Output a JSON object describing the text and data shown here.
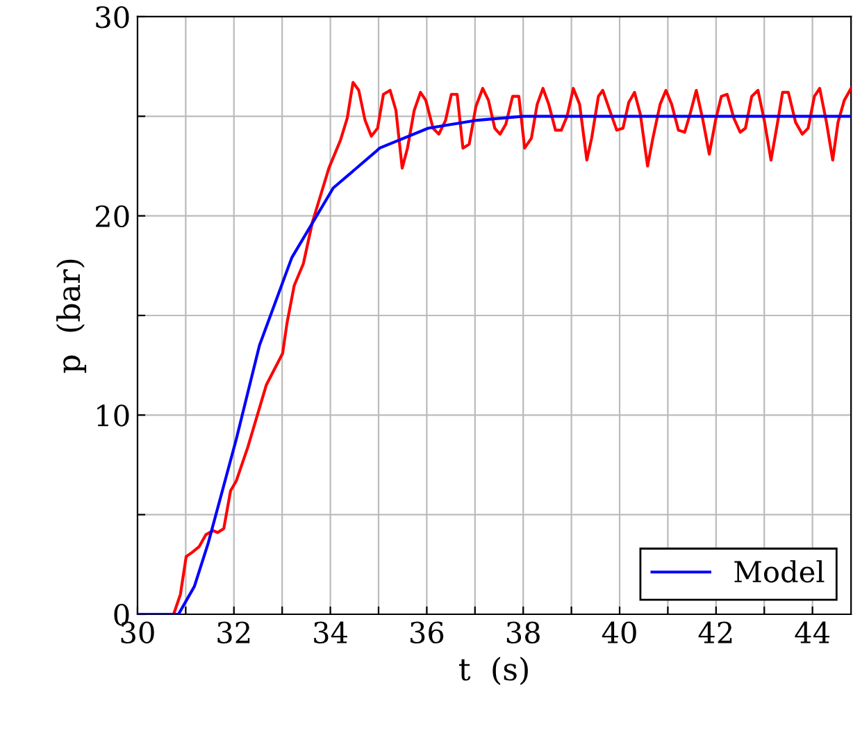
{
  "chart_data": {
    "type": "line",
    "xlabel": "t  (s)",
    "ylabel": "p  (bar)",
    "xlim": [
      30,
      44.8
    ],
    "ylim": [
      0,
      30
    ],
    "xticks": [
      30,
      {
        "value": 31,
        "label": null
      },
      32,
      {
        "value": 33,
        "label": null
      },
      34,
      {
        "value": 35,
        "label": null
      },
      36,
      {
        "value": 37,
        "label": null
      },
      38,
      {
        "value": 39,
        "label": null
      },
      40,
      {
        "value": 41,
        "label": null
      },
      42,
      {
        "value": 43,
        "label": null
      },
      44
    ],
    "yticks": [
      0,
      {
        "value": 5,
        "label": null
      },
      10,
      {
        "value": 15,
        "label": null
      },
      20,
      {
        "value": 25,
        "label": null
      },
      30
    ],
    "grid": true,
    "legend": "bottom right",
    "marker": "none",
    "line_style": "solid",
    "series": [
      {
        "color": "#ff0000",
        "x": [
          30,
          30.75,
          30.89,
          31.01,
          31.13,
          31.28,
          31.42,
          31.57,
          31.66,
          31.79,
          31.93,
          32.05,
          32.29,
          32.67,
          33.01,
          33.1,
          33.25,
          33.44,
          33.63,
          33.97,
          34.21,
          34.35,
          34.47,
          34.59,
          34.72,
          34.85,
          34.98,
          35.1,
          35.24,
          35.36,
          35.49,
          35.6,
          35.74,
          35.87,
          35.98,
          36.13,
          36.25,
          36.39,
          36.51,
          36.63,
          36.75,
          36.88,
          37.02,
          37.16,
          37.28,
          37.41,
          37.52,
          37.64,
          37.78,
          37.91,
          38.03,
          38.17,
          38.29,
          38.41,
          38.53,
          38.67,
          38.79,
          38.91,
          39.04,
          39.17,
          39.32,
          39.42,
          39.56,
          39.65,
          39.78,
          39.94,
          40.07,
          40.19,
          40.31,
          40.43,
          40.58,
          40.69,
          40.84,
          40.96,
          41.08,
          41.22,
          41.35,
          41.46,
          41.59,
          41.72,
          41.86,
          41.99,
          42.11,
          42.23,
          42.37,
          42.5,
          42.61,
          42.74,
          42.87,
          43.0,
          43.14,
          43.27,
          43.38,
          43.5,
          43.65,
          43.79,
          43.91,
          44.04,
          44.15,
          44.29,
          44.42,
          44.53,
          44.66,
          44.8
        ],
        "values": [
          0,
          0,
          1.0,
          2.9,
          3.1,
          3.4,
          4.0,
          4.2,
          4.1,
          4.3,
          6.2,
          6.7,
          8.4,
          11.5,
          13.1,
          14.6,
          16.5,
          17.6,
          19.7,
          22.4,
          23.8,
          24.9,
          26.7,
          26.3,
          24.8,
          24.0,
          24.4,
          26.1,
          26.3,
          25.3,
          22.4,
          23.4,
          25.3,
          26.2,
          25.8,
          24.4,
          24.1,
          24.8,
          26.1,
          26.1,
          23.4,
          23.6,
          25.5,
          26.4,
          25.8,
          24.4,
          24.1,
          24.6,
          26.0,
          26.0,
          23.4,
          23.9,
          25.6,
          26.4,
          25.6,
          24.3,
          24.3,
          25.0,
          26.4,
          25.6,
          22.8,
          23.9,
          26.0,
          26.3,
          25.4,
          24.3,
          24.4,
          25.7,
          26.2,
          25.1,
          22.5,
          23.9,
          25.6,
          26.3,
          25.6,
          24.3,
          24.2,
          25.1,
          26.3,
          24.9,
          23.1,
          24.8,
          26.0,
          26.1,
          24.9,
          24.2,
          24.4,
          26.0,
          26.3,
          24.8,
          22.8,
          24.6,
          26.2,
          26.2,
          24.7,
          24.1,
          24.4,
          26.0,
          26.4,
          24.7,
          22.8,
          24.7,
          25.8,
          26.4
        ]
      },
      {
        "name": "Model",
        "color": "#0000ff",
        "x": [
          30,
          30.85,
          31.18,
          31.47,
          32.05,
          32.53,
          33.2,
          34.06,
          34.93,
          35.02,
          36.03,
          37.04,
          38.0,
          39.83,
          44.8
        ],
        "values": [
          0,
          0,
          1.4,
          3.6,
          8.8,
          13.5,
          17.9,
          21.4,
          23.2,
          23.4,
          24.4,
          24.8,
          25.0,
          25.0,
          25.0
        ]
      }
    ]
  }
}
